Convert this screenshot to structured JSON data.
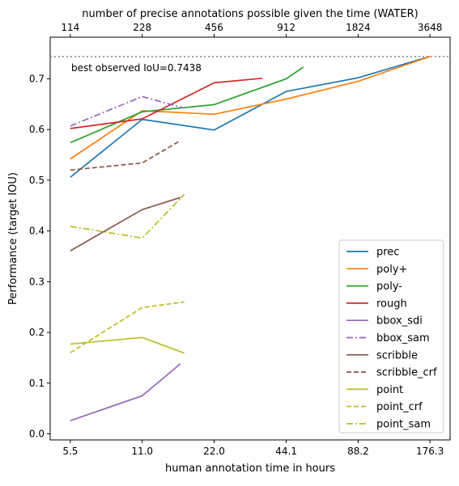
{
  "chart_data": {
    "type": "line",
    "xlabel": "human annotation time in hours",
    "ylabel": "Performance (target IOU)",
    "x_scale": "log2",
    "x_ticks": [
      {
        "value": 5.5,
        "label": "5.5"
      },
      {
        "value": 11.0,
        "label": "11.0"
      },
      {
        "value": 22.0,
        "label": "22.0"
      },
      {
        "value": 44.1,
        "label": "44.1"
      },
      {
        "value": 88.2,
        "label": "88.2"
      },
      {
        "value": 176.3,
        "label": "176.3"
      }
    ],
    "top_xlabel": "number of precise annotations possible given the time (WATER)",
    "top_ticks": [
      {
        "value": 5.5,
        "label": "114"
      },
      {
        "value": 11.0,
        "label": "228"
      },
      {
        "value": 22.0,
        "label": "456"
      },
      {
        "value": 44.1,
        "label": "912"
      },
      {
        "value": 88.2,
        "label": "1824"
      },
      {
        "value": 176.3,
        "label": "3648"
      }
    ],
    "xlim": [
      4.53,
      214
    ],
    "ylim": [
      -0.012,
      0.782
    ],
    "y_ticks": [
      0.0,
      0.1,
      0.2,
      0.3,
      0.4,
      0.5,
      0.6,
      0.7
    ],
    "y_tick_labels": [
      "0.0",
      "0.1",
      "0.2",
      "0.3",
      "0.4",
      "0.5",
      "0.6",
      "0.7"
    ],
    "reference_line": {
      "y": 0.7438,
      "label": "best observed IoU=0.7438",
      "color": "#808080",
      "style": "dotted"
    },
    "legend_position": "lower right",
    "series": [
      {
        "name": "prec",
        "color": "#1f77b4",
        "style": "solid",
        "x": [
          5.5,
          11.0,
          22.0,
          44.1,
          88.2,
          176.3
        ],
        "y": [
          0.506,
          0.62,
          0.599,
          0.675,
          0.702,
          0.744
        ]
      },
      {
        "name": "poly+",
        "color": "#ff7f0e",
        "style": "solid",
        "x": [
          5.5,
          11.0,
          22.0,
          44.1,
          88.2,
          176.3
        ],
        "y": [
          0.542,
          0.637,
          0.63,
          0.66,
          0.695,
          0.744
        ]
      },
      {
        "name": "poly-",
        "color": "#2ca02c",
        "style": "solid",
        "x": [
          5.5,
          11.0,
          22.0,
          44.1,
          52.0
        ],
        "y": [
          0.574,
          0.635,
          0.649,
          0.7,
          0.723
        ]
      },
      {
        "name": "rough",
        "color": "#d62728",
        "style": "solid",
        "x": [
          5.5,
          11.0,
          22.0,
          35.0
        ],
        "y": [
          0.602,
          0.621,
          0.692,
          0.701
        ]
      },
      {
        "name": "bbox_sdi",
        "color": "#9467bd",
        "style": "solid",
        "x": [
          5.5,
          11.0,
          15.9
        ],
        "y": [
          0.026,
          0.075,
          0.138
        ]
      },
      {
        "name": "bbox_sam",
        "color": "#9467bd",
        "style": "dashdot",
        "x": [
          5.5,
          11.0,
          16.5
        ],
        "y": [
          0.607,
          0.665,
          0.642
        ]
      },
      {
        "name": "scribble",
        "color": "#8c564b",
        "style": "solid",
        "x": [
          5.5,
          11.0,
          15.9
        ],
        "y": [
          0.361,
          0.442,
          0.466
        ]
      },
      {
        "name": "scribble_crf",
        "color": "#8c564b",
        "style": "dashed",
        "x": [
          5.5,
          11.0,
          15.9
        ],
        "y": [
          0.52,
          0.534,
          0.578
        ]
      },
      {
        "name": "point",
        "color": "#bcbd22",
        "style": "solid",
        "x": [
          5.5,
          11.0,
          16.5
        ],
        "y": [
          0.177,
          0.19,
          0.159
        ]
      },
      {
        "name": "point_crf",
        "color": "#bcbd22",
        "style": "dashed",
        "x": [
          5.5,
          11.0,
          16.5
        ],
        "y": [
          0.16,
          0.249,
          0.26
        ]
      },
      {
        "name": "point_sam",
        "color": "#bcbd22",
        "style": "dashdot",
        "x": [
          5.5,
          11.0,
          16.5
        ],
        "y": [
          0.409,
          0.386,
          0.472
        ]
      }
    ]
  }
}
